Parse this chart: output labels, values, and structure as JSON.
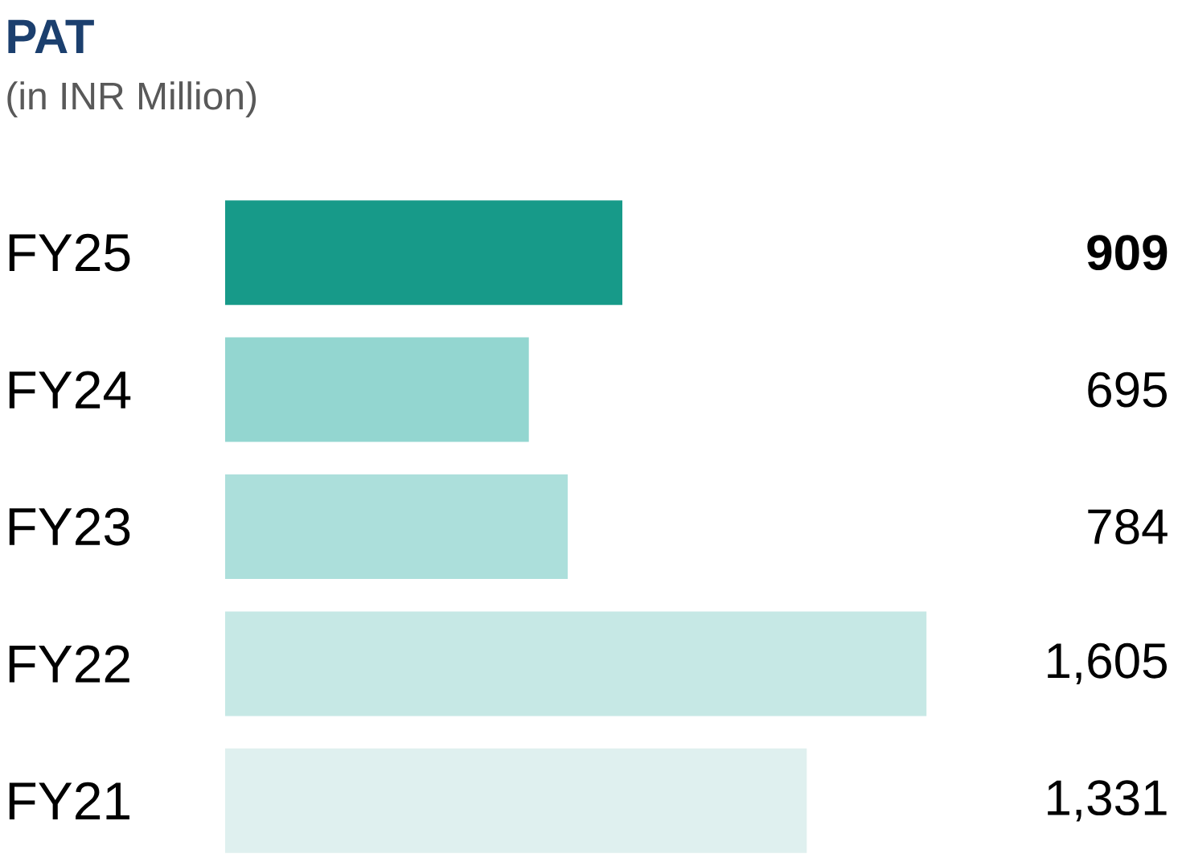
{
  "chart_data": {
    "type": "bar",
    "orientation": "horizontal",
    "title": "PAT",
    "subtitle": "(in INR Million)",
    "categories": [
      "FY25",
      "FY24",
      "FY23",
      "FY22",
      "FY21"
    ],
    "values": [
      909,
      695,
      784,
      1605,
      1331
    ],
    "value_labels": [
      "**909**",
      "695",
      "784",
      "1,605",
      "1,331"
    ],
    "colors": [
      "#179a89",
      "#93d6d0",
      "#acdfdb",
      "#c6e8e5",
      "#dff0ef"
    ]
  }
}
